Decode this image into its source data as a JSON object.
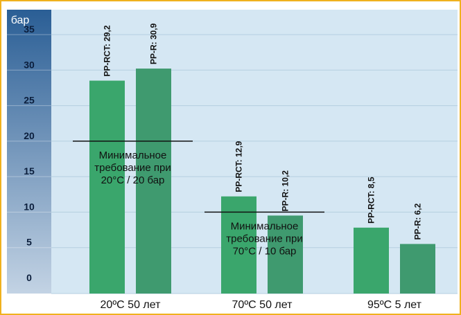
{
  "colors": {
    "border": "#f0b11e",
    "plot_bg": "#d5e7f3",
    "grid": "#b5cfe0",
    "bar_rct": "#3aa66c",
    "bar_r": "#3f9a6f",
    "axis_band_top": "#2a5e95",
    "axis_band_bottom": "#c3d3e4"
  },
  "chart_data": {
    "type": "bar",
    "y_unit": "бар",
    "ylim": [
      0,
      35
    ],
    "yticks": [
      "0",
      "5",
      "10",
      "15",
      "20",
      "25",
      "30",
      "35"
    ],
    "categories": [
      "20ºC 50 лет",
      "70ºC 50 лет",
      "95ºC 5 лет"
    ],
    "series": [
      {
        "name": "PP-RCT",
        "values": [
          29.2,
          12.9,
          8.5
        ]
      },
      {
        "name": "PP-R",
        "values": [
          30.9,
          10.2,
          6.2
        ]
      }
    ],
    "bar_labels": [
      [
        "PP-RCT: 29,2",
        "PP-R: 30,9"
      ],
      [
        "PP-RCT: 12,9",
        "PP-R: 10,2"
      ],
      [
        "PP-RCT: 8,5",
        "PP-R: 6,2"
      ]
    ],
    "annotations": [
      {
        "category": 0,
        "value": 20,
        "lines": [
          "Минимальное",
          "требование при",
          "20°C / 20 бар"
        ]
      },
      {
        "category": 1,
        "value": 10,
        "lines": [
          "Минимальное",
          "требование при",
          "70°C / 10 бар"
        ]
      }
    ],
    "grid": true,
    "legend": "none"
  }
}
